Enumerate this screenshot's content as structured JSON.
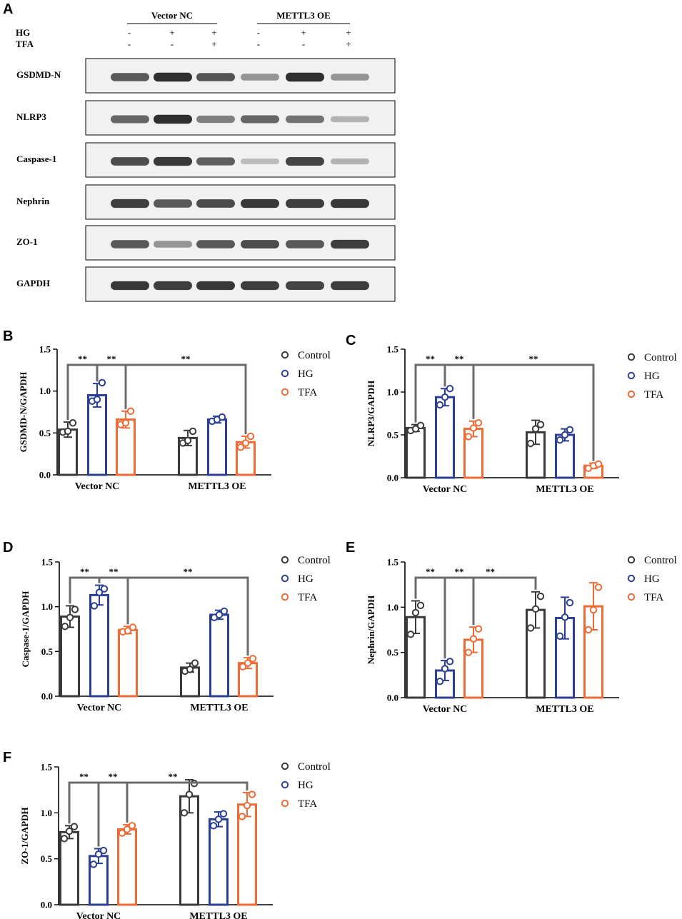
{
  "figure": {
    "colors": {
      "Control": "#3a3a3a",
      "HG": "#2c3f96",
      "TFA": "#ef6a34",
      "bracket": "#6b6b6b"
    },
    "panel_A": {
      "letter": "A",
      "groups": [
        "Vector NC",
        "METTL3 OE"
      ],
      "conditions": [
        {
          "name": "HG",
          "values": [
            "-",
            "+",
            "+",
            "-",
            "+",
            "+"
          ]
        },
        {
          "name": "TFA",
          "values": [
            "-",
            "-",
            "+",
            "-",
            "-",
            "+"
          ]
        }
      ],
      "blots": [
        {
          "label": "GSDMD-N",
          "intensities": [
            0.8,
            0.95,
            0.82,
            0.55,
            0.95,
            0.55
          ]
        },
        {
          "label": "NLRP3",
          "intensities": [
            0.75,
            0.95,
            0.65,
            0.75,
            0.7,
            0.4
          ]
        },
        {
          "label": "Caspase-1",
          "intensities": [
            0.85,
            0.92,
            0.78,
            0.35,
            0.88,
            0.4
          ]
        },
        {
          "label": "Nephrin",
          "intensities": [
            0.9,
            0.8,
            0.85,
            0.92,
            0.9,
            0.92
          ]
        },
        {
          "label": "ZO-1",
          "intensities": [
            0.8,
            0.55,
            0.8,
            0.85,
            0.8,
            0.9
          ]
        },
        {
          "label": "GAPDH",
          "intensities": [
            0.92,
            0.9,
            0.92,
            0.9,
            0.88,
            0.9
          ]
        }
      ]
    }
  },
  "chart_data": [
    {
      "panel": "B",
      "type": "bar",
      "ylabel": "GSDMD-N/GAPDH",
      "ylim": [
        0,
        1.5
      ],
      "yticks": [
        "0.0",
        "0.5",
        "1.0",
        "1.5"
      ],
      "categories": [
        "Vector NC",
        "METTL3 OE"
      ],
      "legend": [
        "Control",
        "HG",
        "TFA"
      ],
      "series": [
        {
          "name": "Control",
          "values": [
            0.54,
            0.44
          ],
          "errors": [
            0.09,
            0.09
          ],
          "points": [
            [
              0.51,
              0.52,
              0.62
            ],
            [
              0.38,
              0.41,
              0.52
            ]
          ]
        },
        {
          "name": "HG",
          "values": [
            0.95,
            0.66
          ],
          "errors": [
            0.14,
            0.04
          ],
          "points": [
            [
              0.88,
              0.9,
              1.1
            ],
            [
              0.64,
              0.66,
              0.69
            ]
          ]
        },
        {
          "name": "TFA",
          "values": [
            0.66,
            0.39
          ],
          "errors": [
            0.1,
            0.07
          ],
          "points": [
            [
              0.6,
              0.62,
              0.76
            ],
            [
              0.33,
              0.38,
              0.46
            ]
          ]
        }
      ],
      "significance": [
        {
          "label": "**",
          "from": [
            0,
            0
          ],
          "to": [
            0,
            1
          ]
        },
        {
          "label": "**",
          "from": [
            0,
            1
          ],
          "to": [
            0,
            2
          ]
        },
        {
          "label": "**",
          "from": [
            0,
            2
          ],
          "to": [
            1,
            2
          ]
        }
      ]
    },
    {
      "panel": "C",
      "type": "bar",
      "ylabel": "NLRP3/GAPDH",
      "ylim": [
        0,
        1.5
      ],
      "yticks": [
        "0.0",
        "0.5",
        "1.0",
        "1.5"
      ],
      "categories": [
        "Vector NC",
        "METTL3 OE"
      ],
      "legend": [
        "Control",
        "HG",
        "TFA"
      ],
      "series": [
        {
          "name": "Control",
          "values": [
            0.58,
            0.53
          ],
          "errors": [
            0.04,
            0.14
          ],
          "points": [
            [
              0.55,
              0.57,
              0.61
            ],
            [
              0.4,
              0.57,
              0.62
            ]
          ]
        },
        {
          "name": "HG",
          "values": [
            0.94,
            0.5
          ],
          "errors": [
            0.1,
            0.07
          ],
          "points": [
            [
              0.85,
              0.94,
              1.04
            ],
            [
              0.44,
              0.5,
              0.56
            ]
          ]
        },
        {
          "name": "TFA",
          "values": [
            0.57,
            0.14
          ],
          "errors": [
            0.09,
            0.03
          ],
          "points": [
            [
              0.48,
              0.58,
              0.64
            ],
            [
              0.11,
              0.14,
              0.16
            ]
          ]
        }
      ],
      "significance": [
        {
          "label": "**",
          "from": [
            0,
            0
          ],
          "to": [
            0,
            1
          ]
        },
        {
          "label": "**",
          "from": [
            0,
            1
          ],
          "to": [
            0,
            2
          ]
        },
        {
          "label": "**",
          "from": [
            0,
            2
          ],
          "to": [
            1,
            2
          ]
        }
      ]
    },
    {
      "panel": "D",
      "type": "bar",
      "ylabel": "Caspase-1/GAPDH",
      "ylim": [
        0,
        1.5
      ],
      "yticks": [
        "0.0",
        "0.5",
        "1.0",
        "1.5"
      ],
      "categories": [
        "Vector NC",
        "METTL3 OE"
      ],
      "legend": [
        "Control",
        "HG",
        "TFA"
      ],
      "series": [
        {
          "name": "Control",
          "values": [
            0.89,
            0.32
          ],
          "errors": [
            0.12,
            0.05
          ],
          "points": [
            [
              0.78,
              0.88,
              0.97
            ],
            [
              0.28,
              0.3,
              0.37
            ]
          ]
        },
        {
          "name": "HG",
          "values": [
            1.13,
            0.91
          ],
          "errors": [
            0.11,
            0.05
          ],
          "points": [
            [
              1.01,
              1.16,
              1.2
            ],
            [
              0.88,
              0.91,
              0.95
            ]
          ]
        },
        {
          "name": "TFA",
          "values": [
            0.74,
            0.37
          ],
          "errors": [
            0.04,
            0.06
          ],
          "points": [
            [
              0.72,
              0.73,
              0.77
            ],
            [
              0.33,
              0.37,
              0.42
            ]
          ]
        }
      ],
      "significance": [
        {
          "label": "**",
          "from": [
            0,
            0
          ],
          "to": [
            0,
            1
          ]
        },
        {
          "label": "**",
          "from": [
            0,
            1
          ],
          "to": [
            0,
            2
          ]
        },
        {
          "label": "**",
          "from": [
            0,
            2
          ],
          "to": [
            1,
            2
          ]
        }
      ]
    },
    {
      "panel": "E",
      "type": "bar",
      "ylabel": "Nephrin/GAPDH",
      "ylim": [
        0,
        1.5
      ],
      "yticks": [
        "0.0",
        "0.5",
        "1.0",
        "1.5"
      ],
      "categories": [
        "Vector NC",
        "METTL3 OE"
      ],
      "legend": [
        "Control",
        "HG",
        "TFA"
      ],
      "series": [
        {
          "name": "Control",
          "values": [
            0.89,
            0.97
          ],
          "errors": [
            0.18,
            0.2
          ],
          "points": [
            [
              0.7,
              0.94,
              1.02
            ],
            [
              0.77,
              0.98,
              1.12
            ]
          ]
        },
        {
          "name": "HG",
          "values": [
            0.3,
            0.88
          ],
          "errors": [
            0.11,
            0.23
          ],
          "points": [
            [
              0.18,
              0.32,
              0.4
            ],
            [
              0.68,
              0.89,
              1.05
            ]
          ]
        },
        {
          "name": "TFA",
          "values": [
            0.64,
            1.01
          ],
          "errors": [
            0.14,
            0.26
          ],
          "points": [
            [
              0.5,
              0.65,
              0.76
            ],
            [
              0.75,
              0.97,
              1.22
            ]
          ]
        }
      ],
      "significance": [
        {
          "label": "**",
          "from": [
            0,
            0
          ],
          "to": [
            0,
            1
          ]
        },
        {
          "label": "**",
          "from": [
            0,
            1
          ],
          "to": [
            0,
            2
          ]
        },
        {
          "label": "**",
          "from": [
            0,
            1
          ],
          "to": [
            1,
            0
          ]
        }
      ]
    },
    {
      "panel": "F",
      "type": "bar",
      "ylabel": "ZO-1/GAPDH",
      "ylim": [
        0,
        1.5
      ],
      "yticks": [
        "0.0",
        "0.5",
        "1.0",
        "1.5"
      ],
      "categories": [
        "Vector NC",
        "METTL3 OE"
      ],
      "legend": [
        "Control",
        "HG",
        "TFA"
      ],
      "series": [
        {
          "name": "Control",
          "values": [
            0.79,
            1.18
          ],
          "errors": [
            0.07,
            0.18
          ],
          "points": [
            [
              0.72,
              0.8,
              0.85
            ],
            [
              1.0,
              1.2,
              1.32
            ]
          ]
        },
        {
          "name": "HG",
          "values": [
            0.53,
            0.93
          ],
          "errors": [
            0.08,
            0.08
          ],
          "points": [
            [
              0.44,
              0.55,
              0.59
            ],
            [
              0.86,
              0.93,
              0.99
            ]
          ]
        },
        {
          "name": "TFA",
          "values": [
            0.82,
            1.09
          ],
          "errors": [
            0.05,
            0.13
          ],
          "points": [
            [
              0.78,
              0.82,
              0.86
            ],
            [
              0.96,
              1.08,
              1.2
            ]
          ]
        }
      ],
      "significance": [
        {
          "label": "**",
          "from": [
            0,
            0
          ],
          "to": [
            0,
            1
          ]
        },
        {
          "label": "**",
          "from": [
            0,
            1
          ],
          "to": [
            0,
            2
          ]
        },
        {
          "label": "**",
          "from": [
            0,
            1
          ],
          "to": [
            1,
            2
          ]
        }
      ]
    }
  ]
}
